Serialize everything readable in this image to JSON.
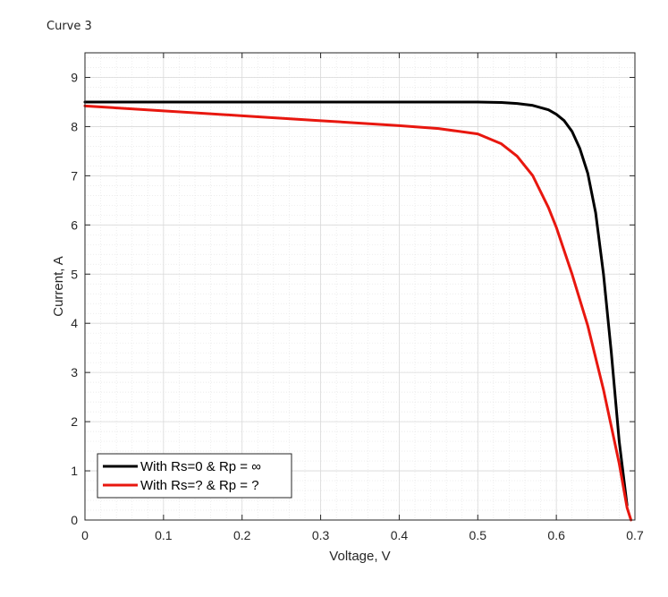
{
  "caption": "Curve 3",
  "chart_data": {
    "type": "line",
    "title": "",
    "xlabel": "Voltage, V",
    "ylabel": "Current, A",
    "xlim": [
      0,
      0.7
    ],
    "ylim": [
      0,
      9.5
    ],
    "xticks": [
      "0",
      "0.1",
      "0.2",
      "0.3",
      "0.4",
      "0.5",
      "0.6",
      "0.7"
    ],
    "yticks": [
      "0",
      "1",
      "2",
      "3",
      "4",
      "5",
      "6",
      "7",
      "8",
      "9"
    ],
    "grid": true,
    "minor_grid": true,
    "legend_position": "bottom-left",
    "series": [
      {
        "name": "With Rs=0 & Rp = ∞",
        "color": "#000000",
        "x": [
          0,
          0.1,
          0.2,
          0.3,
          0.4,
          0.5,
          0.53,
          0.55,
          0.57,
          0.59,
          0.6,
          0.61,
          0.62,
          0.63,
          0.64,
          0.65,
          0.66,
          0.67,
          0.68,
          0.69
        ],
        "y": [
          8.5,
          8.5,
          8.5,
          8.5,
          8.5,
          8.5,
          8.49,
          8.47,
          8.43,
          8.34,
          8.25,
          8.12,
          7.9,
          7.55,
          7.05,
          6.25,
          5.0,
          3.4,
          1.6,
          0.3
        ]
      },
      {
        "name": "With Rs=? & Rp = ?",
        "color": "#e8170f",
        "x": [
          0,
          0.1,
          0.2,
          0.3,
          0.4,
          0.45,
          0.5,
          0.53,
          0.55,
          0.57,
          0.59,
          0.6,
          0.62,
          0.64,
          0.66,
          0.68,
          0.69,
          0.695
        ],
        "y": [
          8.42,
          8.32,
          8.22,
          8.12,
          8.02,
          7.96,
          7.85,
          7.65,
          7.4,
          7.0,
          6.35,
          5.95,
          5.0,
          3.95,
          2.65,
          1.15,
          0.25,
          0.0
        ]
      }
    ]
  }
}
